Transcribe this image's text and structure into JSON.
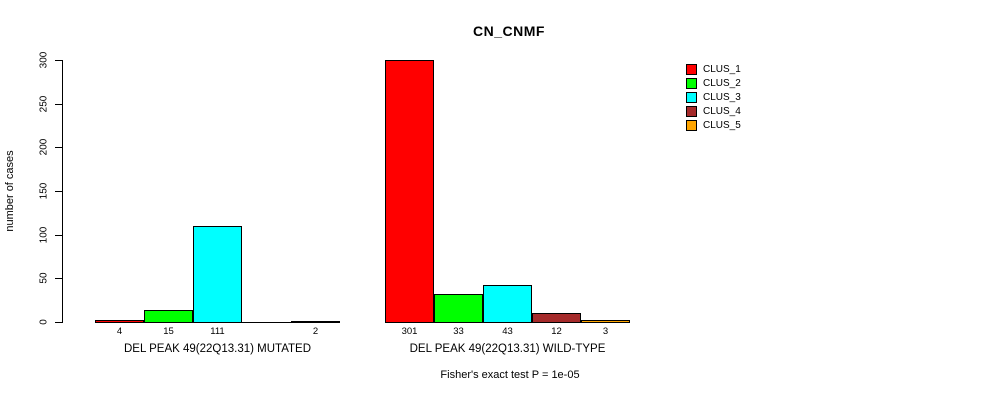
{
  "title": "CN_CNMF",
  "footnote": "Fisher's exact test P = 1e-05",
  "chart_data": {
    "type": "bar",
    "title": "CN_CNMF",
    "xlabel": "",
    "ylabel": "number of cases",
    "ylim": [
      0,
      300
    ],
    "yticks": [
      0,
      50,
      100,
      150,
      200,
      250,
      300
    ],
    "grid": false,
    "legend_position": "right",
    "series": [
      {
        "name": "CLUS_1",
        "color": "#FF0000"
      },
      {
        "name": "CLUS_2",
        "color": "#00FF00"
      },
      {
        "name": "CLUS_3",
        "color": "#00FFFF"
      },
      {
        "name": "CLUS_4",
        "color": "#A52A2A"
      },
      {
        "name": "CLUS_5",
        "color": "#FFA500"
      }
    ],
    "groups": [
      {
        "label": "DEL PEAK 49(22Q13.31) MUTATED",
        "values": [
          4,
          15,
          111,
          0,
          2
        ],
        "bar_labels": [
          "4",
          "15",
          "111",
          "",
          "2"
        ]
      },
      {
        "label": "DEL PEAK 49(22Q13.31) WILD-TYPE",
        "values": [
          301,
          33,
          43,
          12,
          3
        ],
        "bar_labels": [
          "301",
          "33",
          "43",
          "12",
          "3"
        ]
      }
    ],
    "annotation": "Fisher's exact test P = 1e-05"
  }
}
